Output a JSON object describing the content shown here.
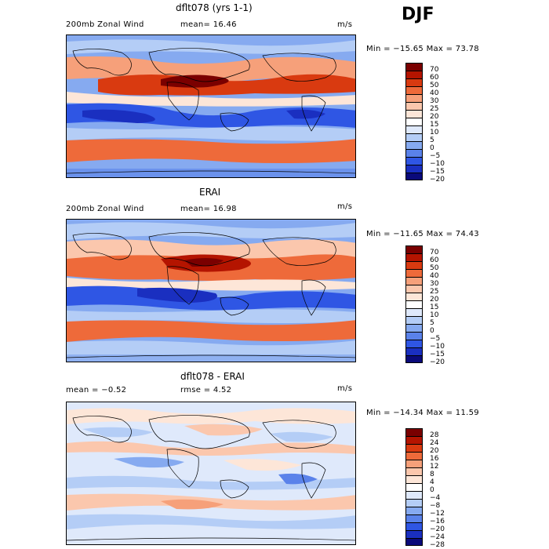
{
  "season": "DJF",
  "panels": [
    {
      "title": "dflt078 (yrs 1-1)",
      "left": "200mb Zonal Wind",
      "mid": "mean=   16.46",
      "units": "m/s",
      "minmax": "Min = −15.65 Max =   73.78",
      "levels": [
        "70",
        "60",
        "50",
        "40",
        "30",
        "25",
        "20",
        "15",
        "10",
        "5",
        "0",
        "−5",
        "−10",
        "−15",
        "−20"
      ]
    },
    {
      "title": "ERAI",
      "left": "200mb Zonal Wind",
      "mid": "mean=   16.98",
      "units": "m/s",
      "minmax": "Min = −11.65 Max =   74.43",
      "levels": [
        "70",
        "60",
        "50",
        "40",
        "30",
        "25",
        "20",
        "15",
        "10",
        "5",
        "0",
        "−5",
        "−10",
        "−15",
        "−20"
      ]
    },
    {
      "title": "dflt078 - ERAI",
      "left": "mean =   −0.52",
      "mid": "rmse =    4.52",
      "units": "m/s",
      "minmax": "Min = −14.34 Max =   11.59",
      "levels": [
        "28",
        "24",
        "20",
        "16",
        "12",
        "8",
        "4",
        "0",
        "−4",
        "−8",
        "−12",
        "−16",
        "−20",
        "−24",
        "−28"
      ]
    }
  ],
  "colors": {
    "field": [
      "#7a0000",
      "#b41400",
      "#d93a10",
      "#ee6a3a",
      "#f6a07a",
      "#fbc7ad",
      "#fde6d8",
      "#ffffff",
      "#dfe9fb",
      "#b4cdf6",
      "#86aaf0",
      "#5a82ea",
      "#2f56e4",
      "#1a2fc0",
      "#0a0a7a"
    ],
    "diff": [
      "#7a0000",
      "#b41400",
      "#d93a10",
      "#ee6a3a",
      "#f6a07a",
      "#fbc7ad",
      "#fde6d8",
      "#ffffff",
      "#dfe9fb",
      "#b4cdf6",
      "#86aaf0",
      "#5a82ea",
      "#2f56e4",
      "#1a2fc0",
      "#0a0a7a"
    ]
  }
}
